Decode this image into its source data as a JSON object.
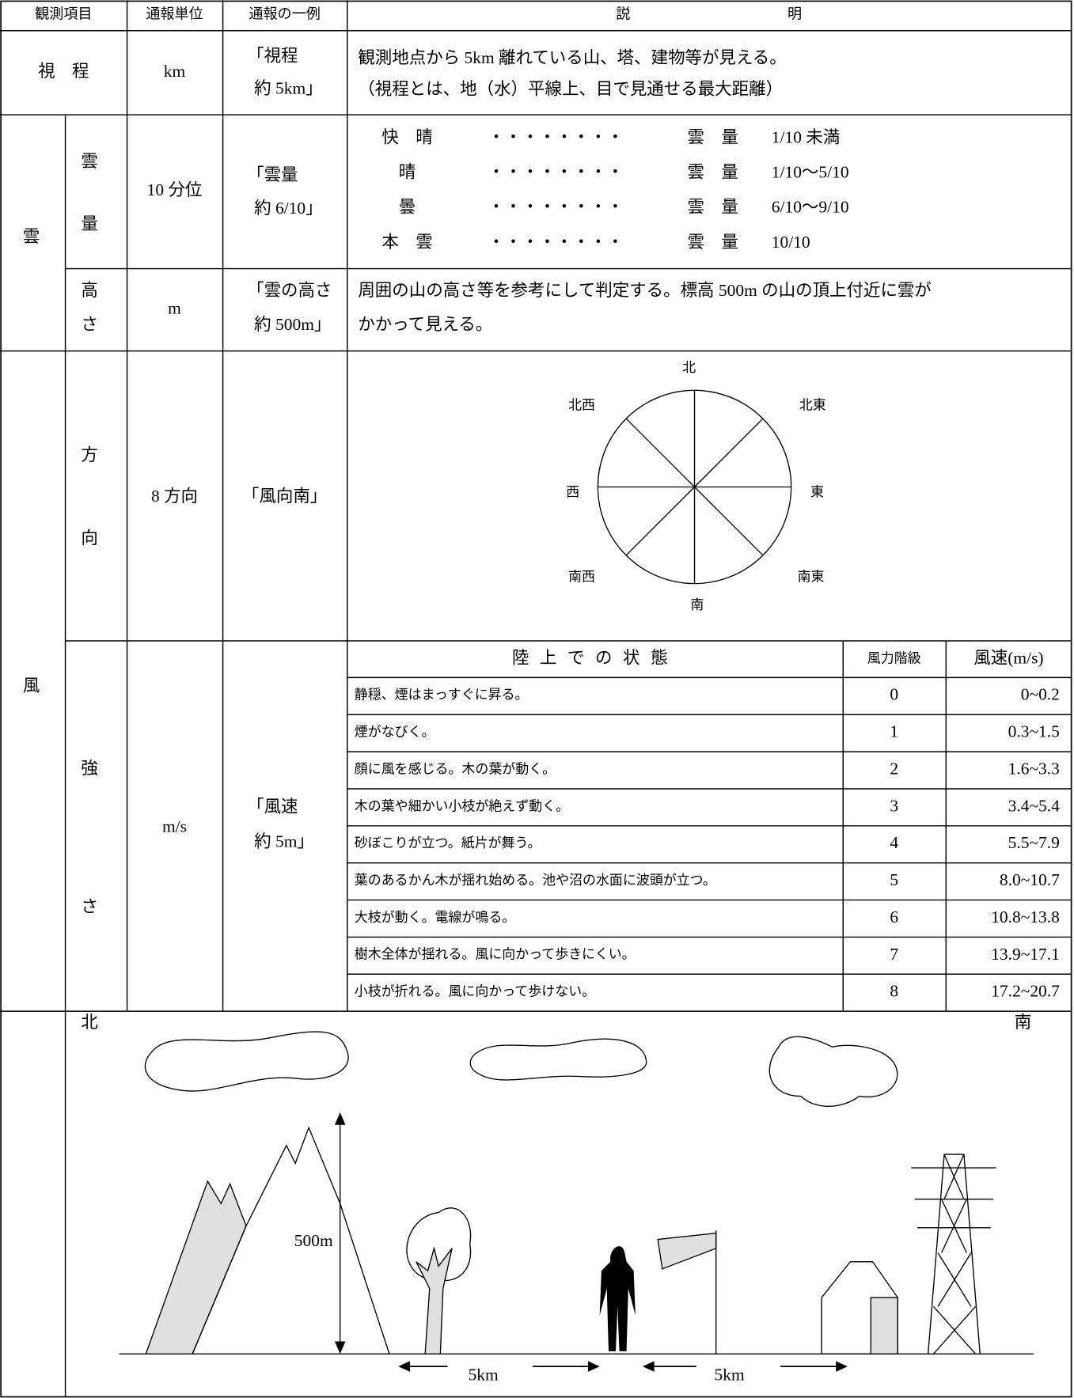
{
  "header": [
    "観測項目",
    "通報単位",
    "通報の一例",
    "説　　　　　　　　　　　明"
  ],
  "visibility": {
    "item": "視　程",
    "unit": "km",
    "example": [
      "「視程",
      "約 5km」"
    ],
    "description": [
      "観測地点から 5km 離れている山、塔、建物等が見える。",
      "（視程とは、地（水）平線上、目で見通せる最大距離）"
    ]
  },
  "cloud": {
    "label": "雲",
    "amount": {
      "item": [
        "雲",
        "量"
      ],
      "unit": "10 分位",
      "example": [
        "「雲量",
        "約 6/10」"
      ],
      "scale": [
        {
          "name": "快　晴",
          "leader": "・・・・・・・・",
          "label": "雲　量",
          "range": "1/10 未満"
        },
        {
          "name": "晴",
          "leader": "・・・・・・・・",
          "label": "雲　量",
          "range": "1/10～5/10"
        },
        {
          "name": "曇",
          "leader": "・・・・・・・・",
          "label": "雲　量",
          "range": "6/10～9/10"
        },
        {
          "name": "本　雲",
          "leader": "・・・・・・・・",
          "label": "雲　量",
          "range": "10/10"
        }
      ]
    },
    "height": {
      "item": [
        "高",
        "さ"
      ],
      "unit": "m",
      "example": [
        "「雲の高さ",
        "約 500m」"
      ],
      "description": [
        "周囲の山の高さ等を参考にして判定する。標高 500m の山の頂上付近に雲が",
        "かかって見える。"
      ]
    }
  },
  "wind": {
    "label": "風",
    "direction": {
      "item": [
        "方",
        "向"
      ],
      "unit": "8 方向",
      "example": "「風向南」",
      "compass": [
        "北",
        "北東",
        "東",
        "南東",
        "南",
        "南西",
        "西",
        "北西"
      ]
    },
    "speed": {
      "item": [
        "強",
        "さ"
      ],
      "unit": "m/s",
      "example": [
        "「風速",
        "約 5m」"
      ],
      "columns": [
        "陸上での状態",
        "風力階級",
        "風速(m/s)"
      ],
      "rows": [
        [
          "静穏、煙はまっすぐに昇る。",
          "0",
          "0~0.2"
        ],
        [
          "煙がなびく。",
          "1",
          "0.3~1.5"
        ],
        [
          "顔に風を感じる。木の葉が動く。",
          "2",
          "1.6~3.3"
        ],
        [
          "木の葉や細かい小枝が絶えず動く。",
          "3",
          "3.4~5.4"
        ],
        [
          "砂ぼこりが立つ。紙片が舞う。",
          "4",
          "5.5~7.9"
        ],
        [
          "葉のあるかん木が揺れ始める。池や沼の水面に波頭が立つ。",
          "5",
          "8.0~10.7"
        ],
        [
          "大枝が動く。電線が鳴る。",
          "6",
          "10.8~13.8"
        ],
        [
          "樹木全体が揺れる。風に向かって歩きにくい。",
          "7",
          "13.9~17.1"
        ],
        [
          "小枝が折れる。風に向かって歩けない。",
          "8",
          "17.2~20.7"
        ]
      ]
    }
  },
  "illustration": {
    "north": "北",
    "south": "南",
    "height": "500m",
    "distance": [
      "5km",
      "5km"
    ]
  }
}
